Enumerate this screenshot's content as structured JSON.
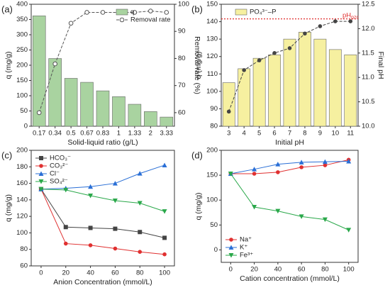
{
  "chart_data": [
    {
      "type": "bar",
      "panel": "(a)",
      "x_label": "Solid-liquid ratio (g/L)",
      "y_label": "q (mg/g)",
      "y2_label": "Removal rate (%)",
      "categories": [
        "0.17",
        "0.34",
        "0.5",
        "0.67",
        "0.83",
        "1",
        "1.33",
        "2",
        "3.33"
      ],
      "series": [
        {
          "name": "q",
          "color": "#a9d3a0",
          "values": [
            362,
            222,
            157,
            144,
            116,
            97,
            72,
            48,
            30
          ]
        },
        {
          "name": "Removal rate",
          "color": "#555555",
          "axis": "y2",
          "marker": "open-circle",
          "values": [
            60,
            78,
            93,
            97,
            97,
            97,
            97,
            97.5,
            97
          ]
        }
      ],
      "ylim": [
        0,
        400
      ],
      "yticks": [
        0,
        50,
        100,
        150,
        200,
        250,
        300,
        350,
        400
      ],
      "y2lim": [
        55,
        100
      ],
      "y2ticks": [
        60,
        70,
        80,
        90,
        100
      ],
      "legend": "upper right"
    },
    {
      "type": "bar",
      "panel": "(b)",
      "x_label": "Initial pH",
      "y_label": "q (mg/g)",
      "y2_label": "Final pH",
      "categories": [
        "3",
        "4",
        "5",
        "6",
        "7",
        "8",
        "9",
        "10",
        "11"
      ],
      "series": [
        {
          "name": "PO₄³⁻–P",
          "color": "#f6f0a0",
          "values": [
            105,
            113,
            119,
            121,
            130,
            134,
            130,
            124,
            121
          ]
        },
        {
          "color": "#444444",
          "axis": "y2",
          "marker": "circle",
          "values": [
            10.3,
            11.15,
            11.35,
            11.5,
            11.6,
            11.9,
            12.05,
            12.15,
            12.15
          ]
        }
      ],
      "ylim": [
        80,
        150
      ],
      "yticks": [
        80,
        90,
        100,
        110,
        120,
        130,
        140,
        150
      ],
      "y2lim": [
        10,
        12.5
      ],
      "y2ticks": [
        {
          "value": 10,
          "label": "10.0"
        },
        {
          "value": 10.5,
          "label": "10.5"
        },
        {
          "value": 11,
          "label": "11.0"
        },
        {
          "value": 11.5,
          "label": "11.5"
        },
        {
          "value": 12,
          "label": "12.0"
        },
        {
          "value": 12.5,
          "label": "12.5"
        }
      ],
      "annotations": [
        {
          "label": "pH",
          "subscript": "pzc",
          "y2": 12.2,
          "color": "#e03030"
        }
      ],
      "legend": "upper left"
    },
    {
      "type": "line",
      "panel": "(c)",
      "x_label": "Anion Concentration (mmol/L)",
      "y_label": "q (mg/g)",
      "x": [
        0,
        20,
        40,
        60,
        80,
        100
      ],
      "series": [
        {
          "name": "HCO₃⁻",
          "color": "#444444",
          "marker": "square",
          "values": [
            153,
            107,
            106,
            105,
            101,
            94
          ]
        },
        {
          "name": "CO₃²⁻",
          "color": "#e03030",
          "marker": "circle",
          "values": [
            153,
            87,
            85,
            81,
            77,
            74
          ]
        },
        {
          "name": "Cl⁻",
          "color": "#2a6fd6",
          "marker": "triangle-up",
          "values": [
            153,
            154,
            156,
            160,
            172,
            182
          ]
        },
        {
          "name": "SO₄²⁻",
          "color": "#2aa84a",
          "marker": "triangle-down",
          "values": [
            153,
            152,
            145,
            139,
            136,
            126
          ]
        }
      ],
      "xlim": [
        -8,
        108
      ],
      "xticks": [
        0,
        20,
        40,
        60,
        80,
        100
      ],
      "ylim": [
        60,
        200
      ],
      "yticks": [
        60,
        80,
        100,
        120,
        140,
        160,
        180,
        200
      ],
      "legend": "upper left"
    },
    {
      "type": "line",
      "panel": "(d)",
      "x_label": "Cation concentration (mmol/L)",
      "y_label": "q (mg/g)",
      "x": [
        0,
        20,
        40,
        60,
        80,
        100
      ],
      "series": [
        {
          "name": "Na⁺",
          "color": "#e03030",
          "marker": "circle",
          "values": [
            153,
            153,
            156,
            166,
            170,
            181
          ]
        },
        {
          "name": "K⁺",
          "color": "#2a6fd6",
          "marker": "triangle-up",
          "values": [
            153,
            162,
            172,
            176,
            177,
            178
          ]
        },
        {
          "name": "Fe³⁺",
          "color": "#2aa84a",
          "marker": "triangle-down",
          "values": [
            153,
            86,
            78,
            67,
            61,
            40
          ]
        }
      ],
      "xlim": [
        -8,
        108
      ],
      "xticks": [
        0,
        20,
        40,
        60,
        80,
        100
      ],
      "ylim": [
        -25,
        200
      ],
      "yticks": [
        0,
        50,
        100,
        150,
        200
      ],
      "legend": "lower left"
    }
  ]
}
